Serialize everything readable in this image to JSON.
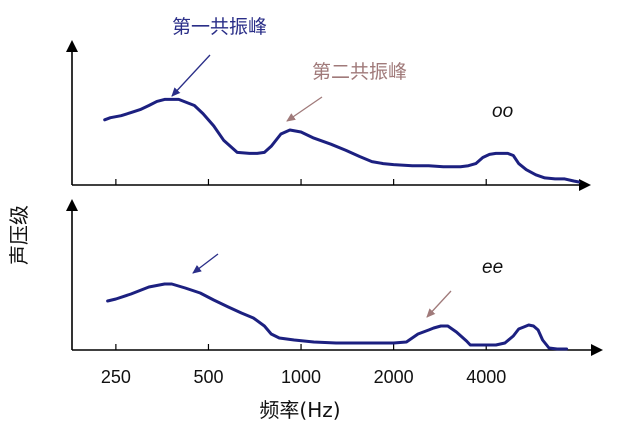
{
  "chart_data": {
    "type": "line",
    "x_scale": "log",
    "x_unit": "Hz",
    "x_ticks": [
      250,
      500,
      1000,
      2000,
      4000
    ],
    "x_tick_labels": [
      "250",
      "500",
      "1000",
      "2000",
      "4000"
    ],
    "xlabel": "频率(Hz)",
    "ylabel": "声压级",
    "line_color": "#1c2080",
    "panels": [
      {
        "label": "oo",
        "x": [
          230,
          240,
          260,
          280,
          300,
          320,
          340,
          360,
          400,
          450,
          480,
          520,
          560,
          620,
          680,
          720,
          760,
          800,
          860,
          920,
          1000,
          1100,
          1250,
          1400,
          1550,
          1700,
          1850,
          2000,
          2300,
          2600,
          2900,
          3100,
          3300,
          3500,
          3700,
          3900,
          4100,
          4300,
          4500,
          4700,
          4900,
          5100,
          5400,
          5800,
          6200,
          6700,
          7200,
          7700,
          8000
        ],
        "y": [
          0.62,
          0.64,
          0.66,
          0.69,
          0.72,
          0.76,
          0.8,
          0.82,
          0.82,
          0.76,
          0.68,
          0.56,
          0.42,
          0.3,
          0.29,
          0.29,
          0.3,
          0.36,
          0.48,
          0.52,
          0.5,
          0.44,
          0.38,
          0.32,
          0.26,
          0.21,
          0.19,
          0.18,
          0.17,
          0.17,
          0.16,
          0.16,
          0.16,
          0.17,
          0.19,
          0.25,
          0.28,
          0.29,
          0.29,
          0.29,
          0.27,
          0.19,
          0.13,
          0.08,
          0.05,
          0.04,
          0.04,
          0.02,
          0.01
        ]
      },
      {
        "label": "ee",
        "x": [
          235,
          250,
          280,
          320,
          360,
          380,
          420,
          470,
          520,
          580,
          640,
          700,
          760,
          800,
          850,
          950,
          1100,
          1300,
          1500,
          1700,
          1900,
          2000,
          2200,
          2400,
          2600,
          2700,
          2850,
          3000,
          3200,
          3450,
          3550,
          3600,
          3800,
          4000,
          4300,
          4600,
          4900,
          5100,
          5300,
          5500,
          5700,
          5900,
          6100,
          6400,
          6800,
          7300
        ],
        "y": [
          0.49,
          0.51,
          0.56,
          0.63,
          0.66,
          0.66,
          0.62,
          0.57,
          0.5,
          0.43,
          0.37,
          0.32,
          0.24,
          0.16,
          0.12,
          0.1,
          0.08,
          0.07,
          0.07,
          0.07,
          0.07,
          0.07,
          0.08,
          0.16,
          0.2,
          0.22,
          0.24,
          0.24,
          0.18,
          0.09,
          0.05,
          0.05,
          0.05,
          0.05,
          0.05,
          0.07,
          0.14,
          0.21,
          0.23,
          0.25,
          0.24,
          0.2,
          0.1,
          0.02,
          0.01,
          0.01
        ]
      }
    ],
    "annotations": [
      {
        "text": "第一共振峰",
        "color": "#2a2e88"
      },
      {
        "text": "第二共振峰",
        "color": "#a07a7a"
      },
      {
        "text": "",
        "color": "#2a2e88"
      },
      {
        "text": "",
        "color": "#a07a7a"
      }
    ]
  }
}
